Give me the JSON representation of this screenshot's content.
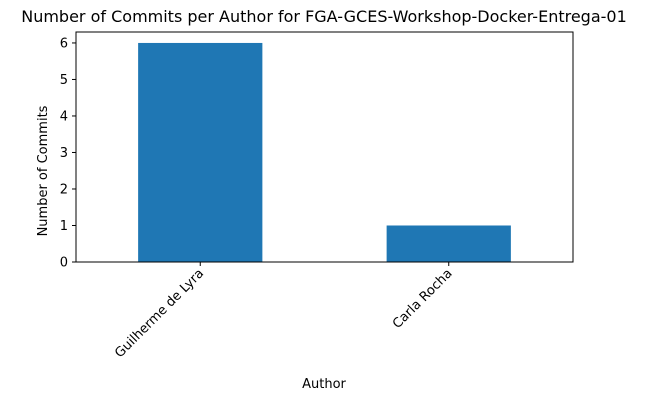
{
  "chart_data": {
    "type": "bar",
    "title": "Number of Commits per Author for FGA-GCES-Workshop-Docker-Entrega-01",
    "xlabel": "Author",
    "ylabel": "Number of Commits",
    "categories": [
      "Guilherme de Lyra",
      "Carla Rocha"
    ],
    "values": [
      6,
      1
    ],
    "ylim": [
      0,
      6.3
    ],
    "yticks": [
      0,
      1,
      2,
      3,
      4,
      5,
      6
    ],
    "grid": false,
    "legend": "none",
    "bar_color": "#1f77b4"
  }
}
